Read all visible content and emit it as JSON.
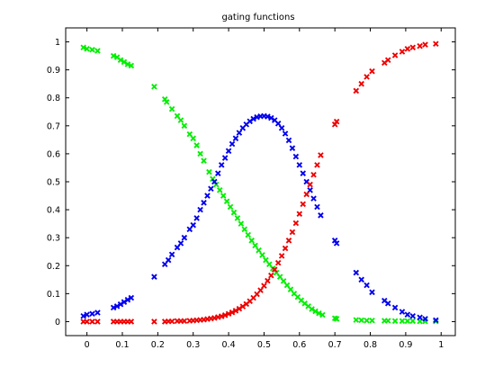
{
  "chart_data": {
    "type": "scatter",
    "title": "gating functions",
    "xlabel": "",
    "ylabel": "",
    "xlim": [
      -0.06,
      1.04
    ],
    "ylim": [
      -0.05,
      1.05
    ],
    "grid": false,
    "legend": "none",
    "marker": "x",
    "x_ticks": [
      0,
      0.1,
      0.2,
      0.3,
      0.4,
      0.5,
      0.6,
      0.7,
      0.8,
      0.9,
      1
    ],
    "x_tick_labels": [
      "0",
      "0.1",
      "0.2",
      "0.3",
      "0.4",
      "0.5",
      "0.6",
      "0.7",
      "0.8",
      "0.9",
      "1"
    ],
    "y_ticks": [
      0,
      0.1,
      0.2,
      0.3,
      0.4,
      0.5,
      0.6,
      0.7,
      0.8,
      0.9,
      1
    ],
    "y_tick_labels": [
      "0",
      "0.1",
      "0.2",
      "0.3",
      "0.4",
      "0.5",
      "0.6",
      "0.7",
      "0.8",
      "0.9",
      "1"
    ],
    "series": [
      {
        "color": "#00ee00",
        "points": [
          [
            -0.01,
            0.98
          ],
          [
            0.0,
            0.975
          ],
          [
            0.015,
            0.972
          ],
          [
            0.03,
            0.968
          ],
          [
            0.075,
            0.95
          ],
          [
            0.085,
            0.945
          ],
          [
            0.095,
            0.935
          ],
          [
            0.105,
            0.928
          ],
          [
            0.115,
            0.92
          ],
          [
            0.125,
            0.915
          ],
          [
            0.19,
            0.84
          ],
          [
            0.22,
            0.795
          ],
          [
            0.225,
            0.785
          ],
          [
            0.24,
            0.76
          ],
          [
            0.255,
            0.735
          ],
          [
            0.265,
            0.72
          ],
          [
            0.275,
            0.7
          ],
          [
            0.29,
            0.67
          ],
          [
            0.3,
            0.655
          ],
          [
            0.31,
            0.63
          ],
          [
            0.32,
            0.6
          ],
          [
            0.33,
            0.575
          ],
          [
            0.345,
            0.535
          ],
          [
            0.355,
            0.51
          ],
          [
            0.365,
            0.49
          ],
          [
            0.375,
            0.47
          ],
          [
            0.385,
            0.45
          ],
          [
            0.395,
            0.43
          ],
          [
            0.405,
            0.41
          ],
          [
            0.415,
            0.39
          ],
          [
            0.425,
            0.37
          ],
          [
            0.435,
            0.35
          ],
          [
            0.445,
            0.33
          ],
          [
            0.455,
            0.31
          ],
          [
            0.465,
            0.29
          ],
          [
            0.475,
            0.272
          ],
          [
            0.485,
            0.255
          ],
          [
            0.495,
            0.238
          ],
          [
            0.505,
            0.22
          ],
          [
            0.515,
            0.205
          ],
          [
            0.525,
            0.19
          ],
          [
            0.535,
            0.175
          ],
          [
            0.545,
            0.16
          ],
          [
            0.555,
            0.145
          ],
          [
            0.565,
            0.13
          ],
          [
            0.575,
            0.115
          ],
          [
            0.585,
            0.1
          ],
          [
            0.595,
            0.088
          ],
          [
            0.605,
            0.076
          ],
          [
            0.615,
            0.065
          ],
          [
            0.625,
            0.055
          ],
          [
            0.635,
            0.045
          ],
          [
            0.645,
            0.037
          ],
          [
            0.655,
            0.03
          ],
          [
            0.665,
            0.024
          ],
          [
            0.7,
            0.012
          ],
          [
            0.705,
            0.01
          ],
          [
            0.76,
            0.006
          ],
          [
            0.775,
            0.005
          ],
          [
            0.79,
            0.004
          ],
          [
            0.805,
            0.004
          ],
          [
            0.84,
            0.003
          ],
          [
            0.85,
            0.003
          ],
          [
            0.87,
            0.002
          ],
          [
            0.89,
            0.002
          ],
          [
            0.905,
            0.002
          ],
          [
            0.92,
            0.002
          ],
          [
            0.94,
            0.001
          ],
          [
            0.955,
            0.001
          ],
          [
            0.985,
            0.001
          ]
        ]
      },
      {
        "color": "#0000ee",
        "points": [
          [
            -0.01,
            0.02
          ],
          [
            0.0,
            0.025
          ],
          [
            0.015,
            0.028
          ],
          [
            0.03,
            0.032
          ],
          [
            0.075,
            0.05
          ],
          [
            0.085,
            0.055
          ],
          [
            0.095,
            0.062
          ],
          [
            0.105,
            0.07
          ],
          [
            0.115,
            0.078
          ],
          [
            0.125,
            0.085
          ],
          [
            0.19,
            0.16
          ],
          [
            0.22,
            0.205
          ],
          [
            0.23,
            0.22
          ],
          [
            0.24,
            0.24
          ],
          [
            0.255,
            0.265
          ],
          [
            0.265,
            0.28
          ],
          [
            0.275,
            0.3
          ],
          [
            0.29,
            0.33
          ],
          [
            0.3,
            0.345
          ],
          [
            0.31,
            0.37
          ],
          [
            0.32,
            0.4
          ],
          [
            0.33,
            0.425
          ],
          [
            0.34,
            0.45
          ],
          [
            0.35,
            0.475
          ],
          [
            0.36,
            0.5
          ],
          [
            0.37,
            0.53
          ],
          [
            0.38,
            0.56
          ],
          [
            0.39,
            0.585
          ],
          [
            0.4,
            0.61
          ],
          [
            0.41,
            0.635
          ],
          [
            0.42,
            0.655
          ],
          [
            0.43,
            0.675
          ],
          [
            0.44,
            0.692
          ],
          [
            0.45,
            0.705
          ],
          [
            0.46,
            0.716
          ],
          [
            0.47,
            0.725
          ],
          [
            0.48,
            0.731
          ],
          [
            0.49,
            0.734
          ],
          [
            0.5,
            0.735
          ],
          [
            0.51,
            0.733
          ],
          [
            0.52,
            0.728
          ],
          [
            0.53,
            0.72
          ],
          [
            0.54,
            0.708
          ],
          [
            0.55,
            0.692
          ],
          [
            0.56,
            0.672
          ],
          [
            0.57,
            0.648
          ],
          [
            0.58,
            0.62
          ],
          [
            0.59,
            0.59
          ],
          [
            0.6,
            0.56
          ],
          [
            0.61,
            0.53
          ],
          [
            0.62,
            0.5
          ],
          [
            0.63,
            0.47
          ],
          [
            0.64,
            0.44
          ],
          [
            0.65,
            0.41
          ],
          [
            0.66,
            0.38
          ],
          [
            0.7,
            0.29
          ],
          [
            0.705,
            0.28
          ],
          [
            0.76,
            0.175
          ],
          [
            0.775,
            0.15
          ],
          [
            0.79,
            0.13
          ],
          [
            0.805,
            0.105
          ],
          [
            0.84,
            0.075
          ],
          [
            0.85,
            0.065
          ],
          [
            0.87,
            0.05
          ],
          [
            0.89,
            0.035
          ],
          [
            0.905,
            0.025
          ],
          [
            0.92,
            0.02
          ],
          [
            0.94,
            0.015
          ],
          [
            0.955,
            0.01
          ],
          [
            0.985,
            0.005
          ]
        ]
      },
      {
        "color": "#ee0000",
        "points": [
          [
            -0.01,
            0.0
          ],
          [
            0.0,
            0.0
          ],
          [
            0.015,
            0.0
          ],
          [
            0.03,
            0.0
          ],
          [
            0.075,
            0.0
          ],
          [
            0.085,
            0.0
          ],
          [
            0.095,
            0.0
          ],
          [
            0.105,
            0.0
          ],
          [
            0.115,
            0.0
          ],
          [
            0.125,
            0.0
          ],
          [
            0.19,
            0.0
          ],
          [
            0.22,
            0.0
          ],
          [
            0.23,
            0.001
          ],
          [
            0.24,
            0.001
          ],
          [
            0.255,
            0.002
          ],
          [
            0.265,
            0.002
          ],
          [
            0.275,
            0.002
          ],
          [
            0.29,
            0.003
          ],
          [
            0.3,
            0.004
          ],
          [
            0.31,
            0.005
          ],
          [
            0.32,
            0.006
          ],
          [
            0.33,
            0.007
          ],
          [
            0.34,
            0.009
          ],
          [
            0.35,
            0.011
          ],
          [
            0.36,
            0.013
          ],
          [
            0.37,
            0.016
          ],
          [
            0.38,
            0.019
          ],
          [
            0.39,
            0.023
          ],
          [
            0.4,
            0.028
          ],
          [
            0.41,
            0.033
          ],
          [
            0.42,
            0.039
          ],
          [
            0.43,
            0.046
          ],
          [
            0.44,
            0.054
          ],
          [
            0.45,
            0.063
          ],
          [
            0.46,
            0.073
          ],
          [
            0.47,
            0.085
          ],
          [
            0.48,
            0.098
          ],
          [
            0.49,
            0.112
          ],
          [
            0.5,
            0.128
          ],
          [
            0.51,
            0.146
          ],
          [
            0.52,
            0.165
          ],
          [
            0.53,
            0.186
          ],
          [
            0.54,
            0.21
          ],
          [
            0.55,
            0.235
          ],
          [
            0.56,
            0.262
          ],
          [
            0.57,
            0.29
          ],
          [
            0.58,
            0.32
          ],
          [
            0.59,
            0.352
          ],
          [
            0.6,
            0.385
          ],
          [
            0.61,
            0.42
          ],
          [
            0.62,
            0.455
          ],
          [
            0.63,
            0.49
          ],
          [
            0.64,
            0.525
          ],
          [
            0.65,
            0.56
          ],
          [
            0.66,
            0.595
          ],
          [
            0.7,
            0.705
          ],
          [
            0.705,
            0.715
          ],
          [
            0.76,
            0.825
          ],
          [
            0.775,
            0.85
          ],
          [
            0.79,
            0.875
          ],
          [
            0.805,
            0.895
          ],
          [
            0.84,
            0.925
          ],
          [
            0.85,
            0.935
          ],
          [
            0.87,
            0.952
          ],
          [
            0.89,
            0.965
          ],
          [
            0.905,
            0.975
          ],
          [
            0.92,
            0.98
          ],
          [
            0.94,
            0.985
          ],
          [
            0.955,
            0.99
          ],
          [
            0.985,
            0.993
          ]
        ]
      }
    ]
  }
}
